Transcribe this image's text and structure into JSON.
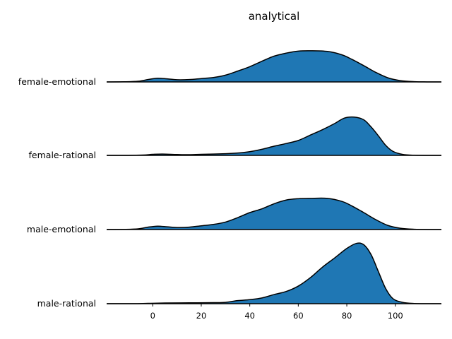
{
  "chart_data": {
    "type": "ridgeline",
    "title": "analytical",
    "xlabel": "",
    "ylabel": "",
    "xlim": [
      -19,
      119
    ],
    "xticks": [
      0,
      20,
      40,
      60,
      80,
      100
    ],
    "grid": false,
    "fill_color": "#1f77b4",
    "line_color": "#000000",
    "series": [
      {
        "name": "female-emotional",
        "points": [
          [
            -19,
            0
          ],
          [
            -12,
            0.004
          ],
          [
            -6,
            0.02
          ],
          [
            -2,
            0.07
          ],
          [
            2,
            0.11
          ],
          [
            6,
            0.09
          ],
          [
            10,
            0.065
          ],
          [
            15,
            0.07
          ],
          [
            20,
            0.1
          ],
          [
            25,
            0.13
          ],
          [
            30,
            0.2
          ],
          [
            35,
            0.32
          ],
          [
            40,
            0.45
          ],
          [
            45,
            0.61
          ],
          [
            50,
            0.76
          ],
          [
            55,
            0.85
          ],
          [
            60,
            0.91
          ],
          [
            65,
            0.92
          ],
          [
            72,
            0.9
          ],
          [
            78,
            0.8
          ],
          [
            82,
            0.67
          ],
          [
            87,
            0.48
          ],
          [
            92,
            0.28
          ],
          [
            97,
            0.12
          ],
          [
            102,
            0.04
          ],
          [
            108,
            0.008
          ],
          [
            113,
            0.001
          ],
          [
            119,
            0
          ]
        ]
      },
      {
        "name": "female-rational",
        "points": [
          [
            -19,
            0
          ],
          [
            -10,
            0
          ],
          [
            -4,
            0.01
          ],
          [
            0,
            0.03
          ],
          [
            4,
            0.04
          ],
          [
            10,
            0.025
          ],
          [
            15,
            0.02
          ],
          [
            20,
            0.03
          ],
          [
            30,
            0.05
          ],
          [
            35,
            0.07
          ],
          [
            40,
            0.11
          ],
          [
            45,
            0.18
          ],
          [
            50,
            0.27
          ],
          [
            55,
            0.35
          ],
          [
            60,
            0.44
          ],
          [
            65,
            0.6
          ],
          [
            70,
            0.76
          ],
          [
            75,
            0.94
          ],
          [
            79,
            1.1
          ],
          [
            83,
            1.13
          ],
          [
            87,
            1.05
          ],
          [
            90,
            0.84
          ],
          [
            93,
            0.58
          ],
          [
            96,
            0.3
          ],
          [
            99,
            0.12
          ],
          [
            103,
            0.03
          ],
          [
            108,
            0.004
          ],
          [
            113,
            0
          ],
          [
            119,
            0
          ]
        ]
      },
      {
        "name": "male-emotional",
        "points": [
          [
            -19,
            0
          ],
          [
            -12,
            0.004
          ],
          [
            -6,
            0.02
          ],
          [
            -2,
            0.07
          ],
          [
            2,
            0.1
          ],
          [
            6,
            0.08
          ],
          [
            10,
            0.06
          ],
          [
            15,
            0.07
          ],
          [
            20,
            0.11
          ],
          [
            25,
            0.15
          ],
          [
            30,
            0.22
          ],
          [
            35,
            0.35
          ],
          [
            40,
            0.5
          ],
          [
            45,
            0.61
          ],
          [
            50,
            0.76
          ],
          [
            55,
            0.87
          ],
          [
            60,
            0.91
          ],
          [
            65,
            0.92
          ],
          [
            72,
            0.92
          ],
          [
            78,
            0.83
          ],
          [
            82,
            0.7
          ],
          [
            87,
            0.5
          ],
          [
            92,
            0.29
          ],
          [
            97,
            0.12
          ],
          [
            102,
            0.04
          ],
          [
            108,
            0.008
          ],
          [
            113,
            0.001
          ],
          [
            119,
            0
          ]
        ]
      },
      {
        "name": "male-rational",
        "points": [
          [
            -19,
            0
          ],
          [
            -8,
            0
          ],
          [
            -2,
            0.01
          ],
          [
            5,
            0.02
          ],
          [
            15,
            0.025
          ],
          [
            25,
            0.03
          ],
          [
            30,
            0.04
          ],
          [
            35,
            0.09
          ],
          [
            40,
            0.12
          ],
          [
            45,
            0.17
          ],
          [
            50,
            0.27
          ],
          [
            55,
            0.36
          ],
          [
            60,
            0.52
          ],
          [
            65,
            0.77
          ],
          [
            70,
            1.08
          ],
          [
            75,
            1.35
          ],
          [
            80,
            1.63
          ],
          [
            84,
            1.78
          ],
          [
            87,
            1.74
          ],
          [
            90,
            1.45
          ],
          [
            93,
            0.95
          ],
          [
            96,
            0.45
          ],
          [
            99,
            0.15
          ],
          [
            103,
            0.04
          ],
          [
            108,
            0.005
          ],
          [
            113,
            0
          ],
          [
            119,
            0
          ]
        ]
      }
    ]
  }
}
